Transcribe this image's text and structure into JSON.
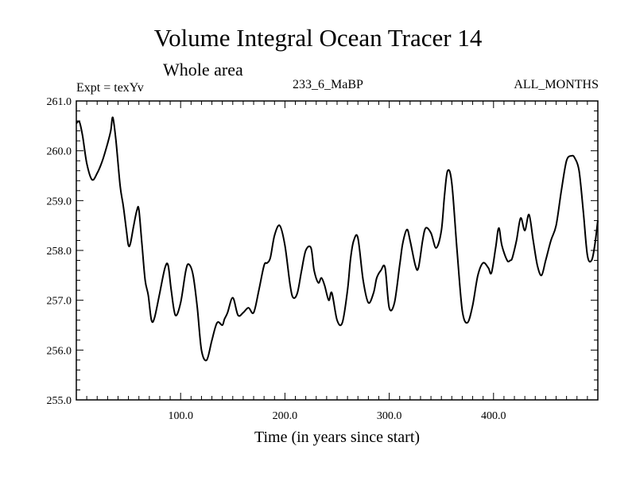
{
  "chart_data": {
    "type": "line",
    "title": "Volume Integral Ocean Tracer 14",
    "subtitle": "Whole area",
    "annotations": {
      "experiment": "Expt = texYv",
      "run": "233_6_MaBP",
      "period": "ALL_MONTHS"
    },
    "xlabel": "Time (in years since start)",
    "ylabel": "",
    "xlim": [
      0,
      500
    ],
    "ylim": [
      255.0,
      261.0
    ],
    "x_ticks": [
      100,
      200,
      300,
      400
    ],
    "x_tick_labels": [
      "100.0",
      "200.0",
      "300.0",
      "400.0"
    ],
    "y_ticks": [
      255,
      256,
      257,
      258,
      259,
      260,
      261
    ],
    "y_tick_labels": [
      "255.0",
      "256.0",
      "257.0",
      "258.0",
      "259.0",
      "260.0",
      "261.0"
    ],
    "grid": false,
    "series": [
      {
        "x": [
          0,
          3,
          6,
          10,
          15,
          20,
          25,
          30,
          33,
          35,
          38,
          42,
          45,
          48,
          50,
          52,
          55,
          58,
          60,
          63,
          66,
          69,
          72,
          75,
          80,
          85,
          88,
          91,
          95,
          100,
          105,
          108,
          112,
          116,
          120,
          125,
          130,
          135,
          140,
          142,
          145,
          150,
          155,
          160,
          165,
          170,
          175,
          180,
          183,
          186,
          190,
          195,
          200,
          205,
          208,
          212,
          216,
          220,
          225,
          228,
          232,
          235,
          238,
          242,
          245,
          250,
          255,
          260,
          263,
          266,
          270,
          275,
          280,
          285,
          288,
          292,
          296,
          300,
          305,
          310,
          313,
          317,
          320,
          325,
          328,
          332,
          335,
          340,
          345,
          350,
          353,
          356,
          360,
          365,
          370,
          375,
          380,
          385,
          390,
          395,
          398,
          402,
          405,
          408,
          413,
          416,
          418,
          422,
          426,
          430,
          434,
          438,
          442,
          446,
          450,
          455,
          460,
          465,
          470,
          475,
          478,
          482,
          486,
          490,
          494,
          497,
          500
        ],
        "values": [
          260.55,
          260.58,
          260.3,
          259.75,
          259.42,
          259.55,
          259.8,
          260.15,
          260.4,
          260.67,
          260.2,
          259.3,
          258.9,
          258.4,
          258.1,
          258.15,
          258.5,
          258.8,
          258.82,
          258.1,
          257.4,
          257.1,
          256.6,
          256.65,
          257.15,
          257.65,
          257.7,
          257.2,
          256.7,
          256.95,
          257.6,
          257.72,
          257.5,
          256.85,
          256.0,
          255.8,
          256.2,
          256.55,
          256.5,
          256.62,
          256.75,
          257.05,
          256.7,
          256.75,
          256.85,
          256.75,
          257.2,
          257.7,
          257.75,
          257.85,
          258.3,
          258.5,
          258.1,
          257.3,
          257.05,
          257.15,
          257.6,
          258.0,
          258.05,
          257.6,
          257.35,
          257.45,
          257.3,
          257.0,
          257.15,
          256.6,
          256.55,
          257.2,
          257.85,
          258.2,
          258.25,
          257.4,
          256.95,
          257.15,
          257.45,
          257.6,
          257.65,
          256.85,
          256.95,
          257.7,
          258.15,
          258.42,
          258.2,
          257.7,
          257.65,
          258.2,
          258.45,
          258.35,
          258.05,
          258.4,
          259.1,
          259.6,
          259.35,
          258.0,
          256.8,
          256.55,
          256.9,
          257.5,
          257.75,
          257.65,
          257.55,
          258.05,
          258.45,
          258.1,
          257.8,
          257.8,
          257.85,
          258.2,
          258.65,
          258.4,
          258.72,
          258.2,
          257.7,
          257.5,
          257.8,
          258.2,
          258.5,
          259.2,
          259.8,
          259.9,
          259.85,
          259.6,
          258.8,
          257.9,
          257.8,
          258.1,
          258.6
        ]
      }
    ]
  }
}
